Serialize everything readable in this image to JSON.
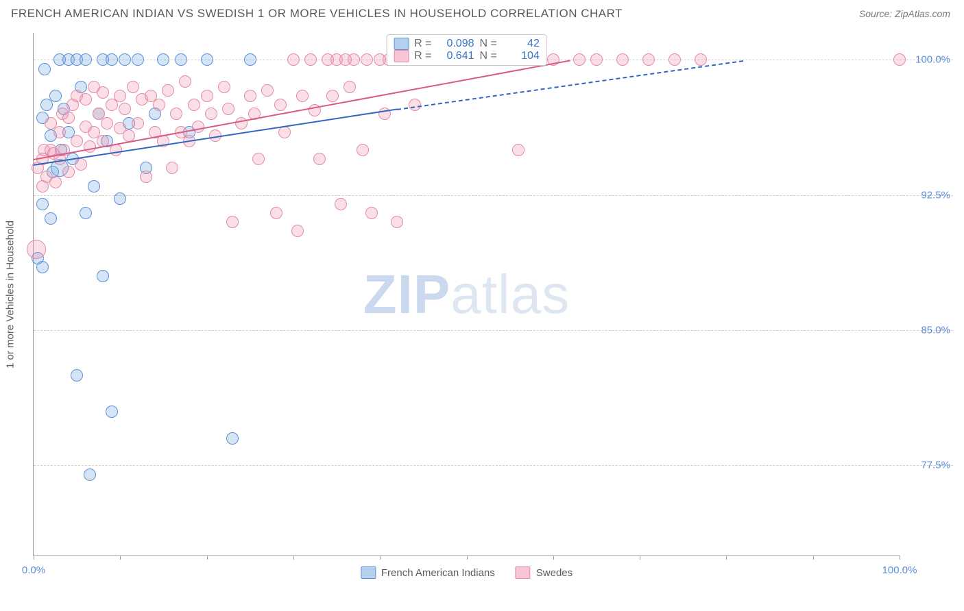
{
  "header": {
    "title": "FRENCH AMERICAN INDIAN VS SWEDISH 1 OR MORE VEHICLES IN HOUSEHOLD CORRELATION CHART",
    "source_label": "Source:",
    "source_name": "ZipAtlas.com"
  },
  "watermark": {
    "zip": "ZIP",
    "atlas": "atlas"
  },
  "chart": {
    "type": "scatter",
    "background_color": "#ffffff",
    "grid_color": "#d0d0d0",
    "axis_color": "#9a9a9a",
    "tick_label_color": "#5b8fd6",
    "axis_title_color": "#5a5a5a",
    "xlim": [
      0,
      100
    ],
    "ylim": [
      72.5,
      101.5
    ],
    "x_ticks": [
      0,
      10,
      20,
      30,
      40,
      50,
      60,
      70,
      80,
      90,
      100
    ],
    "x_tick_labels": {
      "0": "0.0%",
      "100": "100.0%"
    },
    "y_gridlines": [
      77.5,
      85.0,
      92.5,
      100.0
    ],
    "y_tick_labels": [
      "77.5%",
      "85.0%",
      "92.5%",
      "100.0%"
    ],
    "y_axis_title": "1 or more Vehicles in Household",
    "marker_radius_default": 9,
    "series": [
      {
        "name": "French American Indians",
        "key": "blue",
        "fill": "rgba(120,170,225,0.30)",
        "stroke": "#5b8fd6",
        "R": "0.098",
        "N": "42",
        "trend": {
          "x0": 0,
          "y0": 94.2,
          "x1": 42,
          "y1": 97.3,
          "color": "#2f67c0",
          "dash_x1": 82,
          "dash_y1": 100.0
        },
        "points": [
          {
            "x": 0.5,
            "y": 89.0
          },
          {
            "x": 1.0,
            "y": 88.5
          },
          {
            "x": 1.0,
            "y": 96.8
          },
          {
            "x": 1.0,
            "y": 92.0
          },
          {
            "x": 1.3,
            "y": 99.5
          },
          {
            "x": 1.5,
            "y": 97.5
          },
          {
            "x": 2.0,
            "y": 95.8
          },
          {
            "x": 2.0,
            "y": 91.2
          },
          {
            "x": 2.2,
            "y": 93.8
          },
          {
            "x": 2.5,
            "y": 98.0
          },
          {
            "x": 3.0,
            "y": 100.0
          },
          {
            "x": 3.0,
            "y": 94.0,
            "r": 13
          },
          {
            "x": 3.2,
            "y": 95.0
          },
          {
            "x": 3.5,
            "y": 97.3
          },
          {
            "x": 4.0,
            "y": 100.0
          },
          {
            "x": 4.0,
            "y": 96.0
          },
          {
            "x": 4.5,
            "y": 94.5
          },
          {
            "x": 5.0,
            "y": 100.0
          },
          {
            "x": 5.0,
            "y": 82.5
          },
          {
            "x": 5.5,
            "y": 98.5
          },
          {
            "x": 6.0,
            "y": 91.5
          },
          {
            "x": 6.0,
            "y": 100.0
          },
          {
            "x": 6.5,
            "y": 77.0
          },
          {
            "x": 7.0,
            "y": 93.0
          },
          {
            "x": 7.5,
            "y": 97.0
          },
          {
            "x": 8.0,
            "y": 100.0
          },
          {
            "x": 8.0,
            "y": 88.0
          },
          {
            "x": 8.5,
            "y": 95.5
          },
          {
            "x": 9.0,
            "y": 80.5
          },
          {
            "x": 9.0,
            "y": 100.0
          },
          {
            "x": 10.0,
            "y": 92.3
          },
          {
            "x": 10.5,
            "y": 100.0
          },
          {
            "x": 11.0,
            "y": 96.5
          },
          {
            "x": 12.0,
            "y": 100.0
          },
          {
            "x": 13.0,
            "y": 94.0
          },
          {
            "x": 14.0,
            "y": 97.0
          },
          {
            "x": 15.0,
            "y": 100.0
          },
          {
            "x": 17.0,
            "y": 100.0
          },
          {
            "x": 18.0,
            "y": 96.0
          },
          {
            "x": 20.0,
            "y": 100.0
          },
          {
            "x": 23.0,
            "y": 79.0
          },
          {
            "x": 25.0,
            "y": 100.0
          }
        ]
      },
      {
        "name": "Swedes",
        "key": "pink",
        "fill": "rgba(240,150,175,0.30)",
        "stroke": "#e48aa6",
        "R": "0.641",
        "N": "104",
        "trend": {
          "x0": 0,
          "y0": 94.5,
          "x1": 62,
          "y1": 100.0,
          "color": "#d85a85",
          "dash_x1": 62,
          "dash_y1": 100.0
        },
        "points": [
          {
            "x": 0.3,
            "y": 89.5,
            "r": 14
          },
          {
            "x": 0.5,
            "y": 94.0
          },
          {
            "x": 1.0,
            "y": 93.0
          },
          {
            "x": 1.0,
            "y": 94.5
          },
          {
            "x": 1.2,
            "y": 95.0
          },
          {
            "x": 1.5,
            "y": 93.5
          },
          {
            "x": 2.0,
            "y": 95.0
          },
          {
            "x": 2.0,
            "y": 96.5
          },
          {
            "x": 2.3,
            "y": 94.8
          },
          {
            "x": 2.5,
            "y": 93.2
          },
          {
            "x": 3.0,
            "y": 96.0
          },
          {
            "x": 3.0,
            "y": 94.5
          },
          {
            "x": 3.3,
            "y": 97.0
          },
          {
            "x": 3.5,
            "y": 95.0
          },
          {
            "x": 4.0,
            "y": 96.8
          },
          {
            "x": 4.0,
            "y": 93.8
          },
          {
            "x": 4.5,
            "y": 97.5
          },
          {
            "x": 5.0,
            "y": 95.5
          },
          {
            "x": 5.0,
            "y": 98.0
          },
          {
            "x": 5.5,
            "y": 94.2
          },
          {
            "x": 6.0,
            "y": 96.3
          },
          {
            "x": 6.0,
            "y": 97.8
          },
          {
            "x": 6.5,
            "y": 95.2
          },
          {
            "x": 7.0,
            "y": 98.5
          },
          {
            "x": 7.0,
            "y": 96.0
          },
          {
            "x": 7.5,
            "y": 97.0
          },
          {
            "x": 8.0,
            "y": 95.5
          },
          {
            "x": 8.0,
            "y": 98.2
          },
          {
            "x": 8.5,
            "y": 96.5
          },
          {
            "x": 9.0,
            "y": 97.5
          },
          {
            "x": 9.5,
            "y": 95.0
          },
          {
            "x": 10.0,
            "y": 98.0
          },
          {
            "x": 10.0,
            "y": 96.2
          },
          {
            "x": 10.5,
            "y": 97.3
          },
          {
            "x": 11.0,
            "y": 95.8
          },
          {
            "x": 11.5,
            "y": 98.5
          },
          {
            "x": 12.0,
            "y": 96.5
          },
          {
            "x": 12.5,
            "y": 97.8
          },
          {
            "x": 13.0,
            "y": 93.5
          },
          {
            "x": 13.5,
            "y": 98.0
          },
          {
            "x": 14.0,
            "y": 96.0
          },
          {
            "x": 14.5,
            "y": 97.5
          },
          {
            "x": 15.0,
            "y": 95.5
          },
          {
            "x": 15.5,
            "y": 98.3
          },
          {
            "x": 16.0,
            "y": 94.0
          },
          {
            "x": 16.5,
            "y": 97.0
          },
          {
            "x": 17.0,
            "y": 96.0
          },
          {
            "x": 17.5,
            "y": 98.8
          },
          {
            "x": 18.0,
            "y": 95.5
          },
          {
            "x": 18.5,
            "y": 97.5
          },
          {
            "x": 19.0,
            "y": 96.3
          },
          {
            "x": 20.0,
            "y": 98.0
          },
          {
            "x": 20.5,
            "y": 97.0
          },
          {
            "x": 21.0,
            "y": 95.8
          },
          {
            "x": 22.0,
            "y": 98.5
          },
          {
            "x": 22.5,
            "y": 97.3
          },
          {
            "x": 23.0,
            "y": 91.0
          },
          {
            "x": 24.0,
            "y": 96.5
          },
          {
            "x": 25.0,
            "y": 98.0
          },
          {
            "x": 25.5,
            "y": 97.0
          },
          {
            "x": 26.0,
            "y": 94.5
          },
          {
            "x": 27.0,
            "y": 98.3
          },
          {
            "x": 28.0,
            "y": 91.5
          },
          {
            "x": 28.5,
            "y": 97.5
          },
          {
            "x": 29.0,
            "y": 96.0
          },
          {
            "x": 30.0,
            "y": 100.0
          },
          {
            "x": 30.5,
            "y": 90.5
          },
          {
            "x": 31.0,
            "y": 98.0
          },
          {
            "x": 32.0,
            "y": 100.0
          },
          {
            "x": 32.5,
            "y": 97.2
          },
          {
            "x": 33.0,
            "y": 94.5
          },
          {
            "x": 34.0,
            "y": 100.0
          },
          {
            "x": 34.5,
            "y": 98.0
          },
          {
            "x": 35.0,
            "y": 100.0
          },
          {
            "x": 35.5,
            "y": 92.0
          },
          {
            "x": 36.0,
            "y": 100.0
          },
          {
            "x": 36.5,
            "y": 98.5
          },
          {
            "x": 37.0,
            "y": 100.0
          },
          {
            "x": 38.0,
            "y": 95.0
          },
          {
            "x": 38.5,
            "y": 100.0
          },
          {
            "x": 39.0,
            "y": 91.5
          },
          {
            "x": 40.0,
            "y": 100.0
          },
          {
            "x": 40.5,
            "y": 97.0
          },
          {
            "x": 41.0,
            "y": 100.0
          },
          {
            "x": 42.0,
            "y": 91.0
          },
          {
            "x": 43.0,
            "y": 100.0
          },
          {
            "x": 44.0,
            "y": 97.5
          },
          {
            "x": 45.0,
            "y": 100.0
          },
          {
            "x": 46.0,
            "y": 100.0
          },
          {
            "x": 48.0,
            "y": 100.0
          },
          {
            "x": 50.0,
            "y": 100.0
          },
          {
            "x": 51.0,
            "y": 100.0
          },
          {
            "x": 53.0,
            "y": 100.0
          },
          {
            "x": 55.0,
            "y": 100.0
          },
          {
            "x": 56.0,
            "y": 95.0
          },
          {
            "x": 58.0,
            "y": 100.0
          },
          {
            "x": 60.0,
            "y": 100.0
          },
          {
            "x": 63.0,
            "y": 100.0
          },
          {
            "x": 65.0,
            "y": 100.0
          },
          {
            "x": 68.0,
            "y": 100.0
          },
          {
            "x": 71.0,
            "y": 100.0
          },
          {
            "x": 74.0,
            "y": 100.0
          },
          {
            "x": 77.0,
            "y": 100.0
          },
          {
            "x": 100.0,
            "y": 100.0
          }
        ]
      }
    ],
    "legend_top": {
      "r_label": "R =",
      "n_label": "N ="
    },
    "legend_bottom": [
      {
        "swatch": "blue",
        "label": "French American Indians"
      },
      {
        "swatch": "pink",
        "label": "Swedes"
      }
    ]
  }
}
